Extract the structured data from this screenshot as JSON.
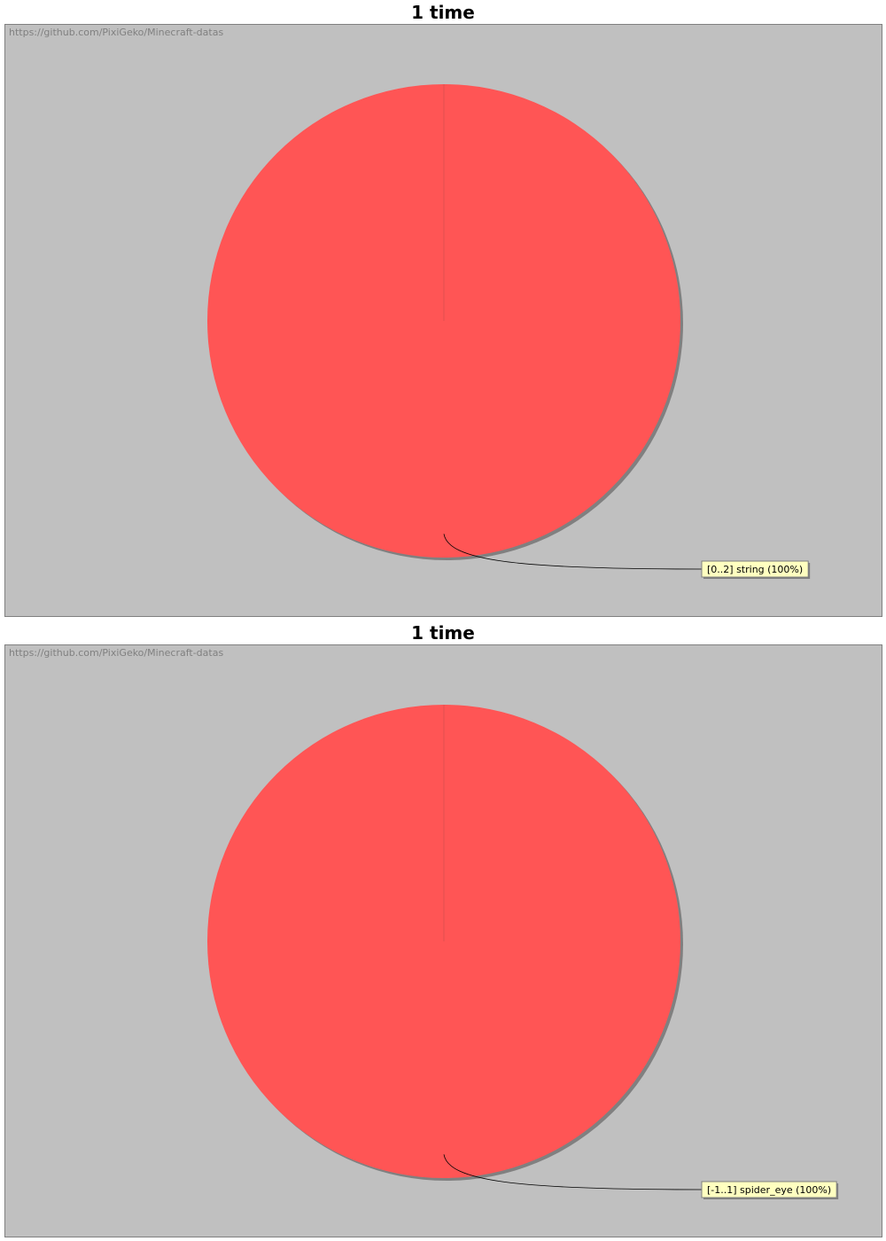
{
  "watermark": "https://github.com/PixiGeko/Minecraft-datas",
  "colors": {
    "plot_background": "#c0c0c0",
    "slice": "#ff5555",
    "shadow": "#808080",
    "label_background": "#ffffc0"
  },
  "chart_data": [
    {
      "type": "pie",
      "title": "1 time",
      "slices": [
        {
          "label": "[0..2] string (100%)",
          "value": 100
        }
      ]
    },
    {
      "type": "pie",
      "title": "1 time",
      "slices": [
        {
          "label": "[-1..1] spider_eye (100%)",
          "value": 100
        }
      ]
    }
  ]
}
